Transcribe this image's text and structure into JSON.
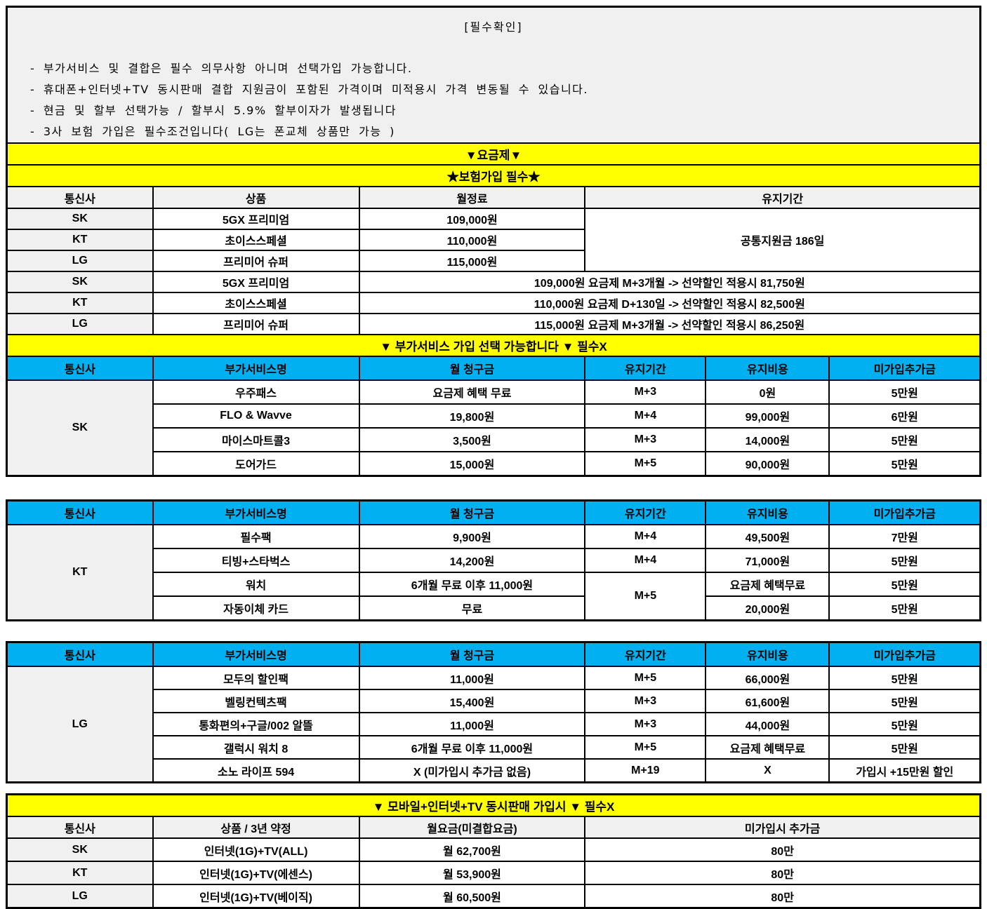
{
  "colors": {
    "accent_yellow": "#FFFF00",
    "accent_blue": "#00B0F0",
    "cell_gray": "#F0F0F0"
  },
  "header": {
    "title": "[필수확인]",
    "notes": [
      "- 부가서비스 및 결합은 필수 의무사항 아니며 선택가입 가능합니다.",
      "- 휴대폰+인터넷+TV 동시판매 결합 지원금이 포함된 가격이며 미적용시 가격 변동될 수 있습니다.",
      "- 현금 및 할부 선택가능 / 할부시 5.9% 할부이자가 발생됩니다",
      "- 3사 보험 가입은 필수조건입니다( LG는 폰교체 상품만 가능 )"
    ]
  },
  "banners": {
    "plan": "▼요금제▼",
    "insurance": "★보험가입 필수★",
    "addon": "▼ 부가서비스 가입 선택 가능합니다 ▼ 필수X",
    "bundle": "▼ 모바일+인터넷+TV 동시판매 가입시 ▼ 필수X"
  },
  "plan_table": {
    "headers": [
      "통신사",
      "상품",
      "월정료",
      "유지기간"
    ],
    "merged_note": "공통지원금 186일",
    "rows": [
      {
        "carrier": "SK",
        "product": "5GX 프리미엄",
        "fee": "109,000원"
      },
      {
        "carrier": "KT",
        "product": "초이스스페셜",
        "fee": "110,000원"
      },
      {
        "carrier": "LG",
        "product": "프리미어 슈퍼",
        "fee": "115,000원"
      }
    ],
    "promo_rows": [
      {
        "carrier": "SK",
        "product": "5GX 프리미엄",
        "detail": "109,000원 요금제 M+3개월 -> 선약할인 적용시 81,750원"
      },
      {
        "carrier": "KT",
        "product": "초이스스페셜",
        "detail": "110,000원 요금제 D+130일 -> 선약할인 적용시 82,500원"
      },
      {
        "carrier": "LG",
        "product": "프리미어 슈퍼",
        "detail": "115,000원 요금제 M+3개월 -> 선약할인 적용시 86,250원"
      }
    ]
  },
  "addon_headers": [
    "통신사",
    "부가서비스명",
    "월 청구금",
    "유지기간",
    "유지비용",
    "미가입추가금"
  ],
  "sk_table": {
    "carrier": "SK",
    "rows": [
      {
        "name": "우주패스",
        "monthly": "요금제 혜택 무료",
        "period": "M+3",
        "keep_cost": "0원",
        "no_join_fee": "5만원"
      },
      {
        "name": "FLO & Wavve",
        "monthly": "19,800원",
        "period": "M+4",
        "keep_cost": "99,000원",
        "no_join_fee": "6만원"
      },
      {
        "name": "마이스마트콜3",
        "monthly": "3,500원",
        "period": "M+3",
        "keep_cost": "14,000원",
        "no_join_fee": "5만원"
      },
      {
        "name": "도어가드",
        "monthly": "15,000원",
        "period": "M+5",
        "keep_cost": "90,000원",
        "no_join_fee": "5만원"
      }
    ]
  },
  "kt_table": {
    "carrier": "KT",
    "rows": [
      {
        "name": "필수팩",
        "monthly": "9,900원",
        "period": "M+4",
        "keep_cost": "49,500원",
        "no_join_fee": "7만원"
      },
      {
        "name": "티빙+스타벅스",
        "monthly": "14,200원",
        "period": "M+4",
        "keep_cost": "71,000원",
        "no_join_fee": "5만원"
      },
      {
        "name": "워치",
        "monthly": "6개월 무료 이후 11,000원",
        "period": "M+5",
        "keep_cost": "요금제 혜택무료",
        "no_join_fee": "5만원"
      },
      {
        "name": "자동이체 카드",
        "monthly": "무료",
        "keep_cost": "20,000원",
        "no_join_fee": "5만원"
      }
    ]
  },
  "lg_table": {
    "carrier": "LG",
    "rows": [
      {
        "name": "모두의 할인팩",
        "monthly": "11,000원",
        "period": "M+5",
        "keep_cost": "66,000원",
        "no_join_fee": "5만원"
      },
      {
        "name": "벨링컨텍츠팩",
        "monthly": "15,400원",
        "period": "M+3",
        "keep_cost": "61,600원",
        "no_join_fee": "5만원"
      },
      {
        "name": "통화편의+구글/002 알뜰",
        "monthly": "11,000원",
        "period": "M+3",
        "keep_cost": "44,000원",
        "no_join_fee": "5만원"
      },
      {
        "name": "갤럭시 워치 8",
        "monthly": "6개월 무료 이후 11,000원",
        "period": "M+5",
        "keep_cost": "요금제 혜택무료",
        "no_join_fee": "5만원"
      },
      {
        "name": "소노 라이프 594",
        "monthly": "X (미가입시 추가금 없음)",
        "period": "M+19",
        "keep_cost": "X",
        "no_join_fee": "가입시 +15만원 할인"
      }
    ]
  },
  "bundle_table": {
    "headers": [
      "통신사",
      "상품 / 3년 약정",
      "월요금(미결합요금)",
      "미가입시 추가금"
    ],
    "rows": [
      {
        "carrier": "SK",
        "product": "인터넷(1G)+TV(ALL)",
        "monthly": "월 62,700원",
        "no_join_fee": "80만"
      },
      {
        "carrier": "KT",
        "product": "인터넷(1G)+TV(에센스)",
        "monthly": "월 53,900원",
        "no_join_fee": "80만"
      },
      {
        "carrier": "LG",
        "product": "인터넷(1G)+TV(베이직)",
        "monthly": "월 60,500원",
        "no_join_fee": "80만"
      }
    ]
  }
}
